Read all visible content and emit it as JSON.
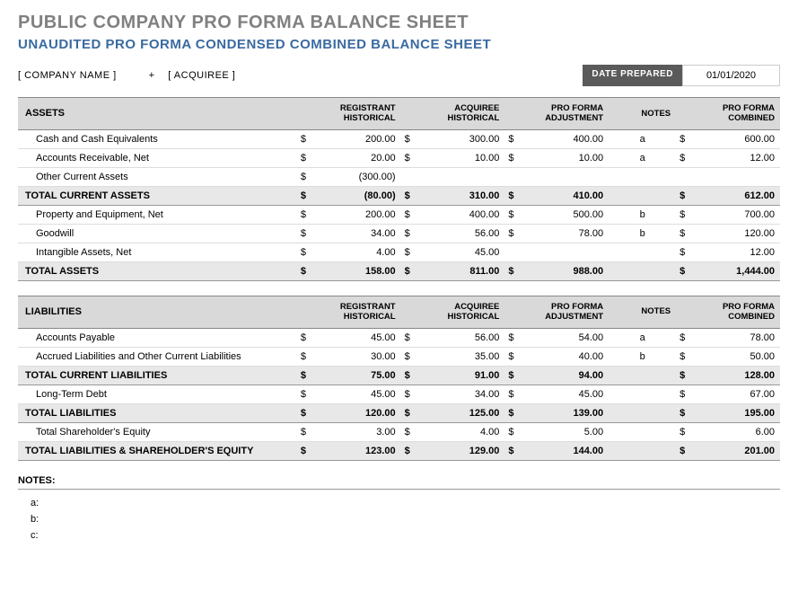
{
  "titles": {
    "main": "PUBLIC COMPANY PRO FORMA BALANCE SHEET",
    "sub": "UNAUDITED PRO FORMA CONDENSED COMBINED BALANCE SHEET"
  },
  "meta": {
    "company": "[ COMPANY NAME ]",
    "plus": "+",
    "acquiree": "[ ACQUIREE ]",
    "date_label": "DATE PREPARED",
    "date_value": "01/01/2020"
  },
  "columns": {
    "c1": "REGISTRANT HISTORICAL",
    "c2": "ACQUIREE HISTORICAL",
    "c3": "PRO FORMA ADJUSTMENT",
    "c4": "NOTES",
    "c5": "PRO FORMA COMBINED"
  },
  "symbols": {
    "dollar": "$"
  },
  "assets": {
    "header": "ASSETS",
    "rows": [
      {
        "label": "Cash and Cash Equivalents",
        "reg": "200.00",
        "acq": "300.00",
        "adj": "400.00",
        "note": "a",
        "comb": "600.00",
        "sReg": "$",
        "sAcq": "$",
        "sAdj": "$",
        "sComb": "$"
      },
      {
        "label": "Accounts Receivable, Net",
        "reg": "20.00",
        "acq": "10.00",
        "adj": "10.00",
        "note": "a",
        "comb": "12.00",
        "sReg": "$",
        "sAcq": "$",
        "sAdj": "$",
        "sComb": "$"
      },
      {
        "label": "Other Current Assets",
        "reg": "(300.00)",
        "acq": "",
        "adj": "",
        "note": "",
        "comb": "",
        "sReg": "$",
        "sAcq": "",
        "sAdj": "",
        "sComb": ""
      }
    ],
    "total_current": {
      "label": "TOTAL CURRENT ASSETS",
      "reg": "(80.00)",
      "acq": "310.00",
      "adj": "410.00",
      "note": "",
      "comb": "612.00"
    },
    "rows2": [
      {
        "label": "Property and Equipment, Net",
        "reg": "200.00",
        "acq": "400.00",
        "adj": "500.00",
        "note": "b",
        "comb": "700.00",
        "sReg": "$",
        "sAcq": "$",
        "sAdj": "$",
        "sComb": "$"
      },
      {
        "label": "Goodwill",
        "reg": "34.00",
        "acq": "56.00",
        "adj": "78.00",
        "note": "b",
        "comb": "120.00",
        "sReg": "$",
        "sAcq": "$",
        "sAdj": "$",
        "sComb": "$"
      },
      {
        "label": "Intangible Assets, Net",
        "reg": "4.00",
        "acq": "45.00",
        "adj": "",
        "note": "",
        "comb": "12.00",
        "sReg": "$",
        "sAcq": "$",
        "sAdj": "",
        "sComb": "$"
      }
    ],
    "total": {
      "label": "TOTAL ASSETS",
      "reg": "158.00",
      "acq": "811.00",
      "adj": "988.00",
      "note": "",
      "comb": "1,444.00"
    }
  },
  "liabilities": {
    "header": "LIABILITIES",
    "rows": [
      {
        "label": "Accounts Payable",
        "reg": "45.00",
        "acq": "56.00",
        "adj": "54.00",
        "note": "a",
        "comb": "78.00",
        "sReg": "$",
        "sAcq": "$",
        "sAdj": "$",
        "sComb": "$"
      },
      {
        "label": "Accrued Liabilities and Other Current Liabilities",
        "reg": "30.00",
        "acq": "35.00",
        "adj": "40.00",
        "note": "b",
        "comb": "50.00",
        "sReg": "$",
        "sAcq": "$",
        "sAdj": "$",
        "sComb": "$"
      }
    ],
    "total_current": {
      "label": "TOTAL CURRENT LIABILITIES",
      "reg": "75.00",
      "acq": "91.00",
      "adj": "94.00",
      "note": "",
      "comb": "128.00"
    },
    "rows2": [
      {
        "label": "Long-Term Debt",
        "reg": "45.00",
        "acq": "34.00",
        "adj": "45.00",
        "note": "",
        "comb": "67.00",
        "sReg": "$",
        "sAcq": "$",
        "sAdj": "$",
        "sComb": "$"
      }
    ],
    "total_liab": {
      "label": "TOTAL LIABILITIES",
      "reg": "120.00",
      "acq": "125.00",
      "adj": "139.00",
      "note": "",
      "comb": "195.00"
    },
    "rows3": [
      {
        "label": "Total Shareholder's Equity",
        "reg": "3.00",
        "acq": "4.00",
        "adj": "5.00",
        "note": "",
        "comb": "6.00",
        "sReg": "$",
        "sAcq": "$",
        "sAdj": "$",
        "sComb": "$"
      }
    ],
    "total_all": {
      "label": "TOTAL LIABILITIES & SHAREHOLDER'S EQUITY",
      "reg": "123.00",
      "acq": "129.00",
      "adj": "144.00",
      "note": "",
      "comb": "201.00"
    }
  },
  "notes": {
    "title": "NOTES:",
    "lines": [
      "a:",
      "b:",
      "c:"
    ]
  },
  "style": {
    "header_bg": "#d9d9d9",
    "total_bg": "#e8e8e8",
    "title_gray": "#808080",
    "subtitle_blue": "#3a6aa0",
    "date_label_bg": "#5a5a5a"
  }
}
